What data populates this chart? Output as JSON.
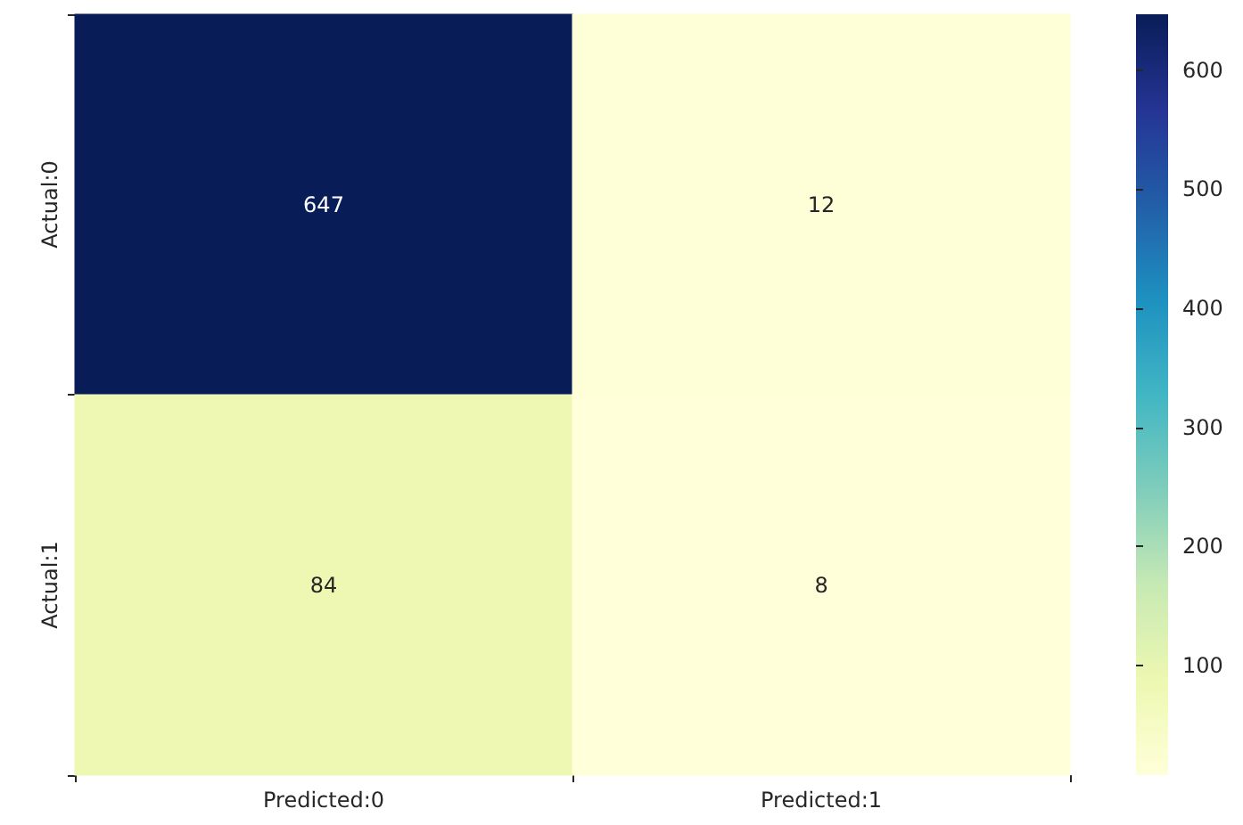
{
  "chart_data": {
    "type": "heatmap",
    "categories": [
      "Predicted:0",
      "Predicted:1"
    ],
    "y_categories": [
      "Actual:0",
      "Actual:1"
    ],
    "cells": [
      [
        647,
        12
      ],
      [
        84,
        8
      ]
    ],
    "clim": [
      8,
      647
    ],
    "cticks": [
      100,
      200,
      300,
      400,
      500,
      600
    ],
    "data_labels": true
  }
}
